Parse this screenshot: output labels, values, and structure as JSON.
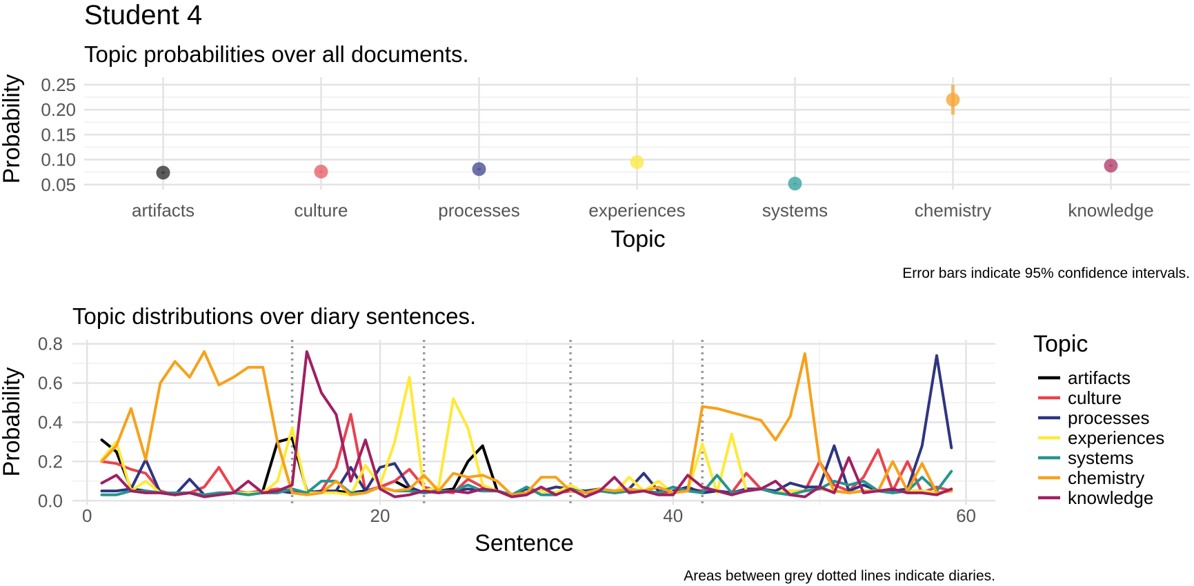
{
  "title": "Student 4",
  "chart_data": [
    {
      "type": "scatter",
      "subtitle": "Topic probabilities over all documents.",
      "xlabel": "Topic",
      "ylabel": "Probability",
      "caption": "Error bars indicate 95% confidence intervals.",
      "ylim": [
        0.04,
        0.265
      ],
      "yticks": [
        0.05,
        0.1,
        0.15,
        0.2,
        0.25
      ],
      "ytick_labels": [
        "0.05",
        "0.10",
        "0.15",
        "0.20",
        "0.25"
      ],
      "categories": [
        "artifacts",
        "culture",
        "processes",
        "experiences",
        "systems",
        "chemistry",
        "knowledge"
      ],
      "values": [
        0.074,
        0.076,
        0.081,
        0.095,
        0.052,
        0.22,
        0.088
      ],
      "ci_low": [
        0.072,
        0.074,
        0.079,
        0.093,
        0.05,
        0.19,
        0.086
      ],
      "ci_high": [
        0.076,
        0.078,
        0.083,
        0.097,
        0.054,
        0.25,
        0.09
      ],
      "colors": [
        "#333333",
        "#e8616a",
        "#4a4f93",
        "#fde84b",
        "#3aa4a1",
        "#f8a83a",
        "#b3406e"
      ],
      "grid": true,
      "legend": "none"
    },
    {
      "type": "line",
      "subtitle": "Topic distributions over diary sentences.",
      "xlabel": "Sentence",
      "ylabel": "Probability",
      "caption": "Areas between grey dotted lines indicate diaries.",
      "xlim": [
        -1,
        62
      ],
      "ylim": [
        -0.02,
        0.82
      ],
      "xticks": [
        0,
        20,
        40,
        60
      ],
      "xtick_labels": [
        "0",
        "20",
        "40",
        "60"
      ],
      "yticks": [
        0.0,
        0.2,
        0.4,
        0.6,
        0.8
      ],
      "ytick_labels": [
        "0.0",
        "0.2",
        "0.4",
        "0.6",
        "0.8"
      ],
      "diary_boundaries": [
        14,
        23,
        33,
        42
      ],
      "legend_title": "Topic",
      "legend": "right",
      "grid": true,
      "x": [
        1,
        2,
        3,
        4,
        5,
        6,
        7,
        8,
        9,
        10,
        11,
        12,
        13,
        14,
        15,
        16,
        17,
        18,
        19,
        20,
        21,
        22,
        23,
        24,
        25,
        26,
        27,
        28,
        29,
        30,
        31,
        32,
        33,
        34,
        35,
        36,
        37,
        38,
        39,
        40,
        41,
        42,
        43,
        44,
        45,
        46,
        47,
        48,
        49,
        50,
        51,
        52,
        53,
        54,
        55,
        56,
        57,
        58,
        59
      ],
      "series": [
        {
          "name": "artifacts",
          "color": "#000000",
          "values": [
            0.31,
            0.25,
            0.06,
            0.05,
            0.04,
            0.03,
            0.04,
            0.03,
            0.03,
            0.04,
            0.04,
            0.05,
            0.3,
            0.32,
            0.05,
            0.04,
            0.05,
            0.04,
            0.05,
            0.07,
            0.1,
            0.06,
            0.04,
            0.05,
            0.06,
            0.2,
            0.28,
            0.05,
            0.03,
            0.04,
            0.05,
            0.04,
            0.05,
            0.04,
            0.05,
            0.04,
            0.05,
            0.05,
            0.04,
            0.05,
            0.06,
            0.04,
            0.05,
            0.04,
            0.05,
            0.06,
            0.04,
            0.05,
            0.05,
            0.06,
            0.05,
            0.04,
            0.05,
            0.05,
            0.04,
            0.05,
            0.05,
            0.04,
            0.05
          ]
        },
        {
          "name": "culture",
          "color": "#e8434f",
          "values": [
            0.2,
            0.19,
            0.16,
            0.14,
            0.05,
            0.03,
            0.04,
            0.07,
            0.17,
            0.05,
            0.04,
            0.05,
            0.06,
            0.05,
            0.04,
            0.05,
            0.17,
            0.44,
            0.05,
            0.07,
            0.1,
            0.16,
            0.07,
            0.05,
            0.04,
            0.11,
            0.07,
            0.05,
            0.03,
            0.04,
            0.05,
            0.04,
            0.05,
            0.04,
            0.05,
            0.04,
            0.05,
            0.05,
            0.04,
            0.05,
            0.06,
            0.05,
            0.05,
            0.04,
            0.14,
            0.06,
            0.04,
            0.05,
            0.05,
            0.2,
            0.08,
            0.05,
            0.12,
            0.26,
            0.05,
            0.2,
            0.04,
            0.07,
            0.05
          ]
        },
        {
          "name": "processes",
          "color": "#2f3580",
          "values": [
            0.05,
            0.05,
            0.06,
            0.21,
            0.04,
            0.03,
            0.11,
            0.03,
            0.04,
            0.04,
            0.04,
            0.04,
            0.05,
            0.04,
            0.04,
            0.05,
            0.05,
            0.17,
            0.05,
            0.17,
            0.19,
            0.07,
            0.04,
            0.05,
            0.05,
            0.06,
            0.05,
            0.05,
            0.03,
            0.06,
            0.05,
            0.07,
            0.06,
            0.05,
            0.06,
            0.05,
            0.06,
            0.14,
            0.05,
            0.05,
            0.07,
            0.04,
            0.05,
            0.04,
            0.06,
            0.06,
            0.05,
            0.09,
            0.07,
            0.07,
            0.28,
            0.05,
            0.08,
            0.05,
            0.05,
            0.06,
            0.28,
            0.74,
            0.27
          ]
        },
        {
          "name": "experiences",
          "color": "#ffe93a",
          "values": [
            0.21,
            0.3,
            0.05,
            0.1,
            0.04,
            0.03,
            0.04,
            0.03,
            0.03,
            0.04,
            0.04,
            0.04,
            0.1,
            0.37,
            0.04,
            0.04,
            0.04,
            0.03,
            0.18,
            0.08,
            0.3,
            0.63,
            0.05,
            0.07,
            0.52,
            0.37,
            0.08,
            0.05,
            0.03,
            0.04,
            0.05,
            0.04,
            0.08,
            0.04,
            0.05,
            0.04,
            0.12,
            0.05,
            0.1,
            0.04,
            0.05,
            0.29,
            0.04,
            0.34,
            0.05,
            0.06,
            0.04,
            0.05,
            0.05,
            0.06,
            0.05,
            0.04,
            0.05,
            0.05,
            0.04,
            0.05,
            0.05,
            0.04,
            0.05
          ]
        },
        {
          "name": "systems",
          "color": "#25958f",
          "values": [
            0.03,
            0.03,
            0.05,
            0.05,
            0.04,
            0.04,
            0.04,
            0.03,
            0.04,
            0.04,
            0.03,
            0.04,
            0.04,
            0.06,
            0.04,
            0.1,
            0.1,
            0.04,
            0.04,
            0.07,
            0.05,
            0.05,
            0.04,
            0.05,
            0.05,
            0.08,
            0.05,
            0.05,
            0.03,
            0.07,
            0.03,
            0.03,
            0.06,
            0.04,
            0.05,
            0.04,
            0.05,
            0.05,
            0.04,
            0.07,
            0.05,
            0.04,
            0.13,
            0.04,
            0.05,
            0.06,
            0.04,
            0.03,
            0.05,
            0.06,
            0.1,
            0.08,
            0.1,
            0.05,
            0.04,
            0.05,
            0.12,
            0.05,
            0.15
          ]
        },
        {
          "name": "chemistry",
          "color": "#f7a11a",
          "values": [
            0.2,
            0.28,
            0.47,
            0.21,
            0.6,
            0.71,
            0.63,
            0.76,
            0.59,
            0.63,
            0.68,
            0.68,
            0.3,
            0.04,
            0.03,
            0.04,
            0.1,
            0.03,
            0.04,
            0.07,
            0.05,
            0.06,
            0.13,
            0.05,
            0.14,
            0.12,
            0.13,
            0.1,
            0.03,
            0.04,
            0.12,
            0.12,
            0.05,
            0.04,
            0.06,
            0.05,
            0.06,
            0.05,
            0.07,
            0.04,
            0.05,
            0.48,
            0.47,
            0.45,
            0.43,
            0.41,
            0.31,
            0.43,
            0.75,
            0.2,
            0.05,
            0.04,
            0.05,
            0.05,
            0.2,
            0.05,
            0.19,
            0.04,
            0.05
          ]
        },
        {
          "name": "knowledge",
          "color": "#a01f62",
          "values": [
            0.09,
            0.13,
            0.05,
            0.04,
            0.04,
            0.03,
            0.04,
            0.02,
            0.03,
            0.04,
            0.1,
            0.04,
            0.05,
            0.08,
            0.76,
            0.55,
            0.44,
            0.1,
            0.31,
            0.06,
            0.02,
            0.03,
            0.05,
            0.04,
            0.05,
            0.04,
            0.06,
            0.05,
            0.02,
            0.03,
            0.07,
            0.03,
            0.06,
            0.02,
            0.05,
            0.12,
            0.04,
            0.05,
            0.03,
            0.03,
            0.13,
            0.07,
            0.05,
            0.03,
            0.05,
            0.06,
            0.1,
            0.03,
            0.02,
            0.07,
            0.04,
            0.22,
            0.04,
            0.05,
            0.06,
            0.04,
            0.04,
            0.03,
            0.06
          ]
        }
      ]
    }
  ]
}
